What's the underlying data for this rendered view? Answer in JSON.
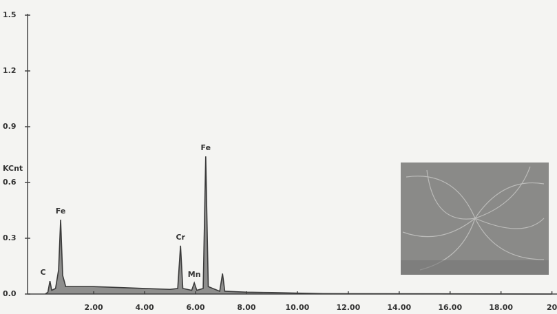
{
  "chart_data": {
    "type": "line",
    "ylabel": "KCnt",
    "xlim": [
      -0.6,
      20.2
    ],
    "ylim": [
      0,
      1.5
    ],
    "yticks": [
      {
        "value": 0,
        "label": "0.0"
      },
      {
        "value": 0.3,
        "label": "0.3"
      },
      {
        "value": 0.6,
        "label": "0.6"
      },
      {
        "value": 0.9,
        "label": "0.9"
      },
      {
        "value": 1.2,
        "label": "1.2"
      },
      {
        "value": 1.5,
        "label": "1.5"
      }
    ],
    "xticks": [
      {
        "value": 2,
        "label": "2.00"
      },
      {
        "value": 4,
        "label": "4.00"
      },
      {
        "value": 6,
        "label": "6.00"
      },
      {
        "value": 8,
        "label": "8.00"
      },
      {
        "value": 10,
        "label": "10.00"
      },
      {
        "value": 12,
        "label": "12.00"
      },
      {
        "value": 14,
        "label": "14.00"
      },
      {
        "value": 16,
        "label": "16.00"
      },
      {
        "value": 18,
        "label": "18.00"
      },
      {
        "value": 20,
        "label": "20"
      }
    ],
    "series": [
      {
        "color": "#3a3a3a",
        "x": [
          0.1,
          0.2,
          0.28,
          0.35,
          0.5,
          0.62,
          0.7,
          0.78,
          0.9,
          1.2,
          2,
          3,
          4,
          5,
          5.3,
          5.41,
          5.5,
          5.85,
          5.95,
          6.05,
          6.3,
          6.4,
          6.5,
          6.95,
          7.06,
          7.15,
          8,
          9,
          10,
          11,
          20
        ],
        "values": [
          0,
          0.01,
          0.07,
          0.02,
          0.03,
          0.13,
          0.4,
          0.1,
          0.04,
          0.04,
          0.04,
          0.035,
          0.03,
          0.025,
          0.03,
          0.26,
          0.03,
          0.02,
          0.06,
          0.02,
          0.03,
          0.74,
          0.04,
          0.015,
          0.11,
          0.015,
          0.01,
          0.008,
          0.005,
          0.002,
          0
        ]
      }
    ],
    "peaks": [
      {
        "label": "C",
        "x": 0.28
      },
      {
        "label": "Fe",
        "x": 0.7
      },
      {
        "label": "Cr",
        "x": 5.41
      },
      {
        "label": "Mn",
        "x": 5.95
      },
      {
        "label": "Fe",
        "x": 6.4
      }
    ]
  }
}
